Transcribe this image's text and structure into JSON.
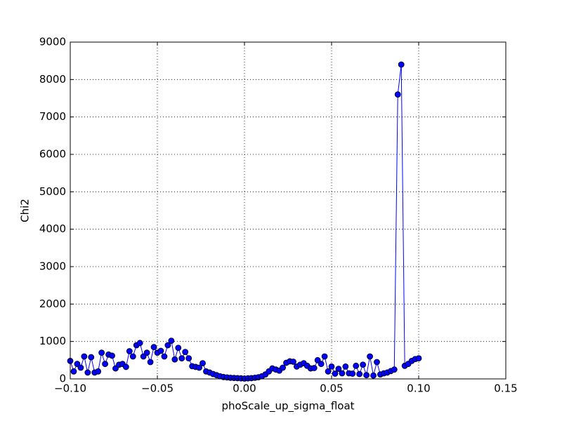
{
  "chart_data": {
    "type": "line",
    "xlabel": "phoScale_up_sigma_float",
    "ylabel": "Chi2",
    "color": "#0000ff",
    "marker_edge": "#000000",
    "grid": true,
    "xlim": [
      -0.1,
      0.15
    ],
    "ylim": [
      0,
      9000
    ],
    "xticks": [
      {
        "value": -0.1,
        "label": "−0.10"
      },
      {
        "value": -0.05,
        "label": "−0.05"
      },
      {
        "value": 0,
        "label": "0.00"
      },
      {
        "value": 0.05,
        "label": "0.05"
      },
      {
        "value": 0.1,
        "label": "0.10"
      },
      {
        "value": 0.15,
        "label": "0.15"
      }
    ],
    "yticks": [
      0,
      1000,
      2000,
      3000,
      4000,
      5000,
      6000,
      7000,
      8000,
      9000
    ],
    "x": [
      -0.1,
      -0.098,
      -0.096,
      -0.094,
      -0.092,
      -0.09,
      -0.088,
      -0.086,
      -0.084,
      -0.082,
      -0.08,
      -0.078,
      -0.076,
      -0.074,
      -0.072,
      -0.07,
      -0.068,
      -0.066,
      -0.064,
      -0.062,
      -0.06,
      -0.058,
      -0.056,
      -0.054,
      -0.052,
      -0.05,
      -0.048,
      -0.046,
      -0.044,
      -0.042,
      -0.04,
      -0.038,
      -0.036,
      -0.034,
      -0.032,
      -0.03,
      -0.028,
      -0.026,
      -0.024,
      -0.022,
      -0.02,
      -0.018,
      -0.016,
      -0.014,
      -0.012,
      -0.01,
      -0.008,
      -0.006,
      -0.004,
      -0.002,
      0,
      0.002,
      0.004,
      0.006,
      0.008,
      0.01,
      0.012,
      0.014,
      0.016,
      0.018,
      0.02,
      0.022,
      0.024,
      0.026,
      0.028,
      0.03,
      0.032,
      0.034,
      0.036,
      0.038,
      0.04,
      0.042,
      0.044,
      0.046,
      0.048,
      0.05,
      0.052,
      0.054,
      0.056,
      0.058,
      0.06,
      0.062,
      0.064,
      0.066,
      0.068,
      0.07,
      0.072,
      0.074,
      0.076,
      0.078,
      0.08,
      0.082,
      0.084,
      0.086,
      0.088,
      0.09,
      0.092,
      0.094,
      0.096,
      0.098,
      0.1
    ],
    "values": [
      480,
      200,
      400,
      300,
      600,
      170,
      580,
      170,
      200,
      700,
      400,
      650,
      620,
      280,
      380,
      400,
      320,
      740,
      600,
      900,
      960,
      600,
      700,
      450,
      850,
      700,
      750,
      600,
      900,
      1020,
      520,
      830,
      550,
      720,
      550,
      340,
      320,
      300,
      420,
      200,
      170,
      130,
      100,
      70,
      50,
      40,
      30,
      25,
      20,
      15,
      10,
      15,
      20,
      30,
      45,
      70,
      120,
      200,
      280,
      250,
      220,
      300,
      430,
      470,
      460,
      330,
      380,
      420,
      350,
      280,
      290,
      500,
      400,
      600,
      200,
      330,
      140,
      270,
      150,
      330,
      150,
      140,
      350,
      130,
      380,
      100,
      600,
      90,
      450,
      120,
      150,
      170,
      210,
      250,
      7600,
      8400,
      350,
      400,
      480,
      530,
      550
    ]
  }
}
